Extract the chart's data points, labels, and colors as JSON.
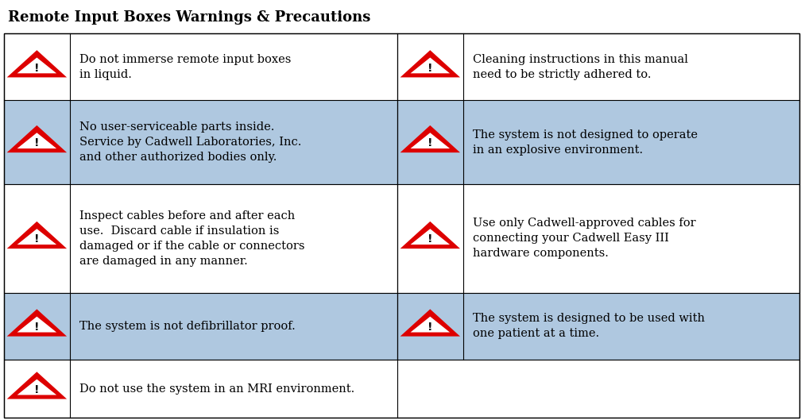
{
  "title": "Remote Input Boxes Warnings & Precautions",
  "title_fontsize": 13,
  "bg_color": "#ffffff",
  "highlight_color": "#afc8e0",
  "border_color": "#000000",
  "text_color": "#000000",
  "font_size": 10.5,
  "rows": [
    {
      "highlighted": false,
      "left_text": "Do not immerse remote input boxes\nin liquid.",
      "right_text": "Cleaning instructions in this manual\nneed to be strictly adhered to.",
      "right_highlighted": false
    },
    {
      "highlighted": true,
      "left_text": "No user-serviceable parts inside.\nService by Cadwell Laboratories, Inc.\nand other authorized bodies only.",
      "right_text": "The system is not designed to operate\nin an explosive environment.",
      "right_highlighted": true
    },
    {
      "highlighted": false,
      "left_text": "Inspect cables before and after each\nuse.  Discard cable if insulation is\ndamaged or if the cable or connectors\nare damaged in any manner.",
      "right_text": "Use only Cadwell-approved cables for\nconnecting your Cadwell Easy III\nhardware components.",
      "right_highlighted": false
    },
    {
      "highlighted": true,
      "left_text": "The system is not defibrillator proof.",
      "right_text": "The system is designed to be used with\none patient at a time.",
      "right_highlighted": true
    }
  ],
  "last_row_text": "Do not use the system in an MRI environment.",
  "row_height_ratios": [
    1.6,
    2.0,
    2.6,
    1.6,
    1.4
  ],
  "icon_triangle_color": "#dd0000",
  "icon_triangle_edge": "#cc0000",
  "icon_inner_color": "#ffffff",
  "icon_exclaim_color": "#111111"
}
